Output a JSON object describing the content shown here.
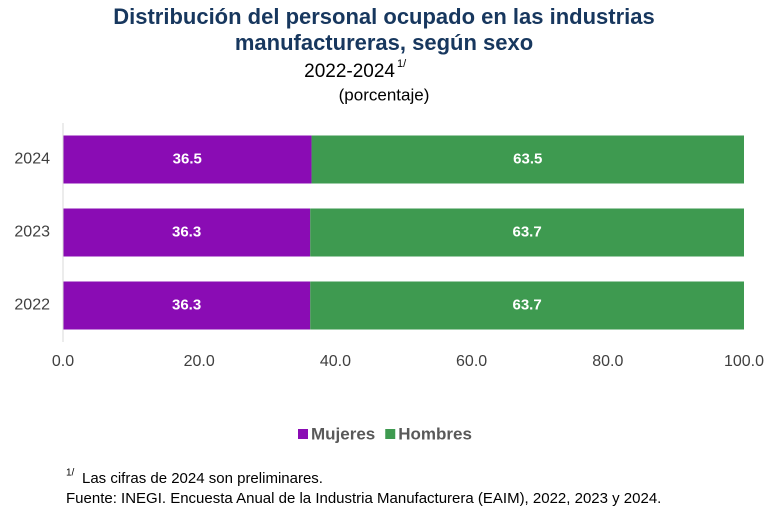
{
  "chart_data": {
    "type": "stacked-bar-horizontal",
    "title": "Distribución del personal ocupado en las industrias manufactureras, según sexo",
    "subtitle": "2022-2024",
    "subtitle_superscript": "1/",
    "unit_note": "(porcentaje)",
    "categories": [
      "2024",
      "2023",
      "2022"
    ],
    "series": [
      {
        "name": "Mujeres",
        "color": "#8a0cb4",
        "values": [
          36.5,
          36.3,
          36.3
        ]
      },
      {
        "name": "Hombres",
        "color": "#3e9a50",
        "values": [
          63.5,
          63.7,
          63.7
        ]
      }
    ],
    "xlim": [
      0,
      100
    ],
    "xticks": [
      {
        "value": 0,
        "label": "0.0"
      },
      {
        "value": 20,
        "label": "20.0"
      },
      {
        "value": 40,
        "label": "40.0"
      },
      {
        "value": 60,
        "label": "60.0"
      },
      {
        "value": 80,
        "label": "80.0"
      },
      {
        "value": 100,
        "label": "100.0"
      }
    ],
    "legend": "bottom",
    "footnote_marker": "1/",
    "footnote": "Las cifras de 2024 son preliminares.",
    "source": "Fuente: INEGI. Encuesta Anual de la Industria Manufacturera (EAIM), 2022, 2023 y 2024."
  }
}
